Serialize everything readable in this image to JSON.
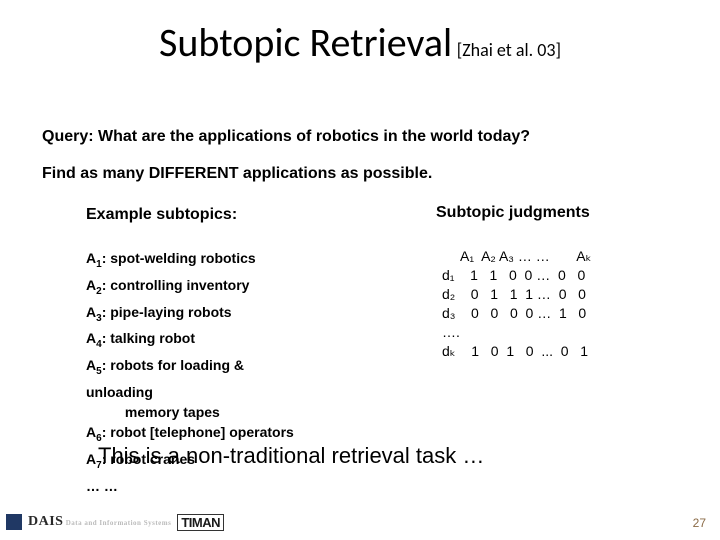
{
  "title": {
    "main": "Subtopic Retrieval",
    "cite": "[Zhai et al. 03]"
  },
  "query": "Query: What are the applications of robotics in the world today?",
  "find": "Find as many DIFFERENT applications as possible.",
  "leftHead": "Example subtopics:",
  "rightHead": "Subtopic judgments",
  "subtopics": [
    {
      "idx": "1",
      "text": "spot-welding robotics"
    },
    {
      "idx": "2",
      "text": "controlling inventory"
    },
    {
      "idx": "3",
      "text": "pipe-laying robots"
    },
    {
      "idx": "4",
      "text": "talking robot"
    },
    {
      "idx": "5",
      "text": "robots for loading &"
    }
  ],
  "subtopics_extra": [
    "unloading",
    "          memory tapes"
  ],
  "subtopics_tail": [
    {
      "idx": "6",
      "text": "robot [telephone] operators"
    },
    {
      "idx": "7",
      "text": "robot cranes"
    }
  ],
  "subtopics_ellipsis": "… …",
  "jhead": "A₁  A₂ A₃ … …       Aₖ",
  "jrows": [
    "d₁    1   1   0  0 …  0   0",
    "d₂    0   1   1  1 …  0   0",
    "d₃    0   0   0  0 …  1   0",
    "….",
    "dₖ    1   0  1   0  ...  0   1"
  ],
  "conclude": "This is a non-traditional retrieval task …",
  "logo1": "DAIS",
  "logo2": "TIMAN",
  "slideNum": "27",
  "colors": {
    "bg": "#ffffff",
    "text": "#000000",
    "pagenum": "#8a6a46",
    "footerblock": "#203864"
  }
}
